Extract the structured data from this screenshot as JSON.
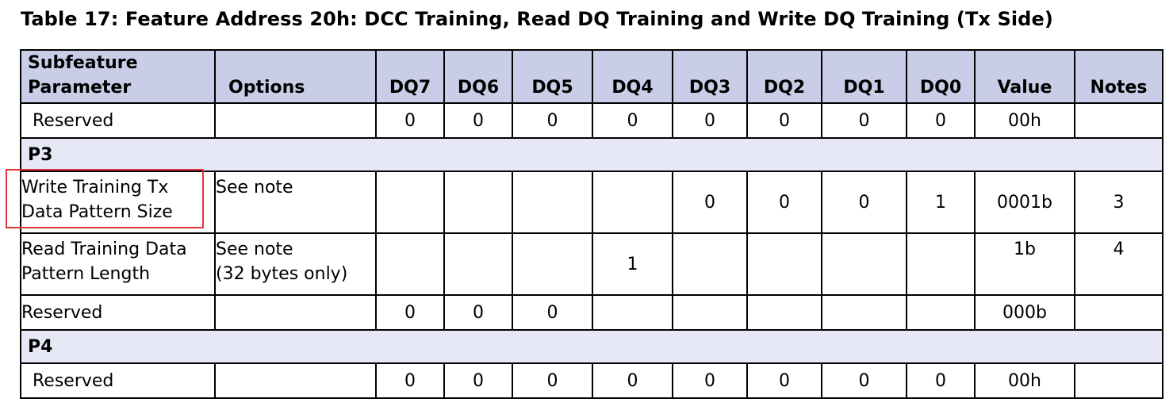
{
  "title": "Table 17: Feature Address 20h: DCC Training, Read DQ Training and Write DQ Training (Tx Side)",
  "headers": {
    "subfeature_line1": "Subfeature",
    "subfeature_line2": "Parameter",
    "options": "Options",
    "dq7": "DQ7",
    "dq6": "DQ6",
    "dq5": "DQ5",
    "dq4": "DQ4",
    "dq3": "DQ3",
    "dq2": "DQ2",
    "dq1": "DQ1",
    "dq0": "DQ0",
    "value": "Value",
    "notes": "Notes"
  },
  "row_reserved_1": {
    "param": "Reserved",
    "options": "",
    "dq7": "0",
    "dq6": "0",
    "dq5": "0",
    "dq4": "0",
    "dq3": "0",
    "dq2": "0",
    "dq1": "0",
    "dq0": "0",
    "value": "00h",
    "notes": ""
  },
  "section_p3": "P3",
  "row_write_training": {
    "param_line1": "Write Training Tx",
    "param_line2": "Data Pattern Size",
    "options": "See note",
    "dq3": "0",
    "dq2": "0",
    "dq1": "0",
    "dq0": "1",
    "value": "0001b",
    "notes": "3"
  },
  "row_read_training": {
    "param_line1": "Read Training Data",
    "param_line2": "Pattern Length",
    "options_line1": "See note",
    "options_line2": "(32 bytes only)",
    "dq4": "1",
    "value": "1b",
    "notes": "4"
  },
  "row_reserved_2": {
    "param": "Reserved",
    "dq7": "0",
    "dq6": "0",
    "dq5": "0",
    "value": "000b"
  },
  "section_p4": "P4",
  "row_reserved_3": {
    "param": "Reserved",
    "dq7": "0",
    "dq6": "0",
    "dq5": "0",
    "dq4": "0",
    "dq3": "0",
    "dq2": "0",
    "dq1": "0",
    "dq0": "0",
    "value": "00h",
    "notes": ""
  },
  "colors": {
    "header_bg": "#c9cde8",
    "section_bg": "#e6e8f6",
    "highlight_border": "#e0343c"
  }
}
